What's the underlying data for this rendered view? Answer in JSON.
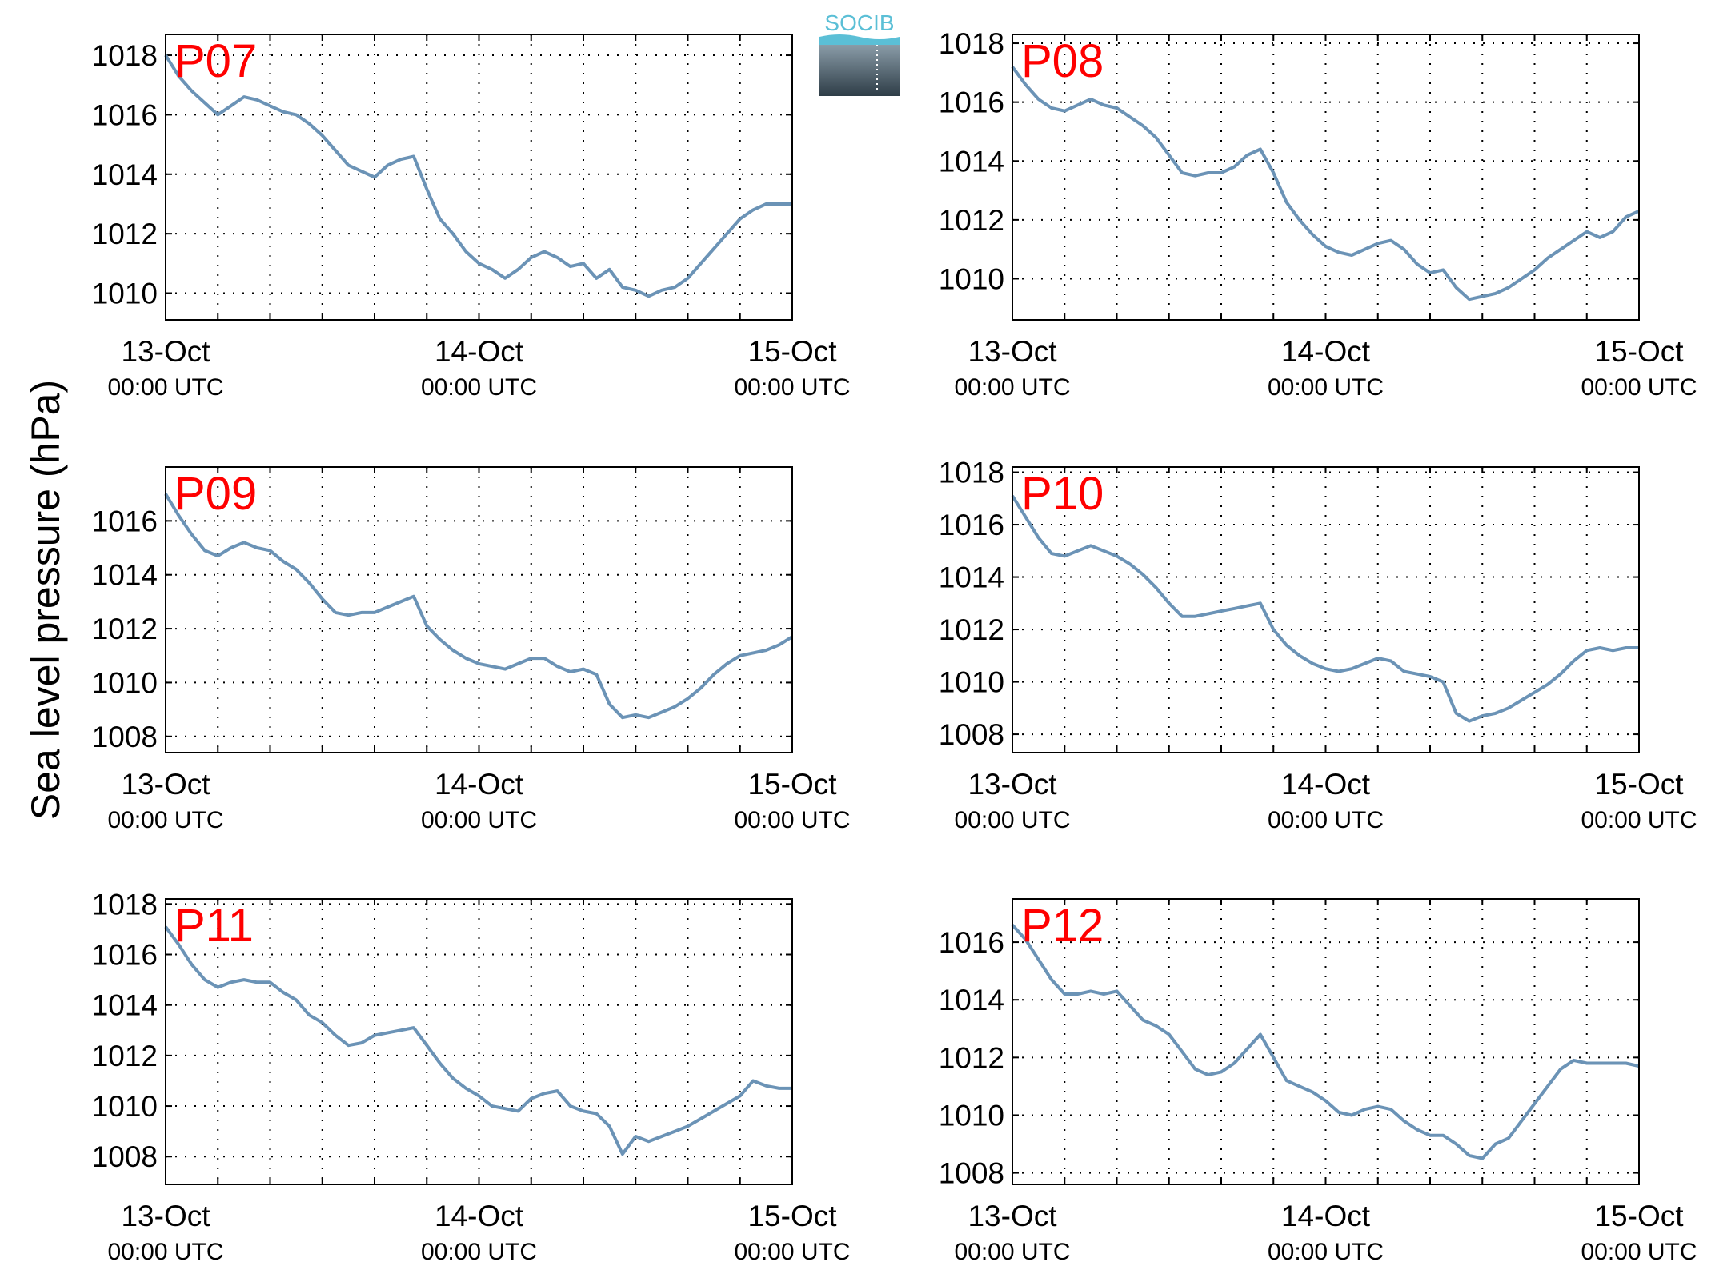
{
  "ylabel": "Sea level pressure (hPa)",
  "logo_text": "SOCIB",
  "colors": {
    "line": "#6b93b6",
    "label": "#ff0000",
    "logo": "#5bbfd6"
  },
  "chart_data": [
    {
      "type": "line",
      "label": "P07",
      "ylim": [
        1009.1,
        1018.7
      ],
      "yticks": [
        1010,
        1012,
        1014,
        1016,
        1018
      ],
      "xlim": [
        "13-Oct 00:00 UTC",
        "15-Oct 00:00 UTC"
      ],
      "xticks": [
        {
          "day": "13-Oct",
          "time": "00:00 UTC"
        },
        {
          "day": "14-Oct",
          "time": "00:00 UTC"
        },
        {
          "day": "15-Oct",
          "time": "00:00 UTC"
        }
      ],
      "grid": true,
      "x": [
        0,
        1,
        2,
        3,
        4,
        5,
        6,
        7,
        8,
        9,
        10,
        11,
        12,
        13,
        14,
        15,
        16,
        17,
        18,
        19,
        20,
        21,
        22,
        23,
        24,
        25,
        26,
        27,
        28,
        29,
        30,
        31,
        32,
        33,
        34,
        35,
        36,
        37,
        38,
        39,
        40,
        41,
        42,
        43,
        44,
        45,
        46,
        47,
        48
      ],
      "y": [
        1018.0,
        1017.3,
        1016.8,
        1016.4,
        1016.0,
        1016.3,
        1016.6,
        1016.5,
        1016.3,
        1016.1,
        1016.0,
        1015.7,
        1015.3,
        1014.8,
        1014.3,
        1014.1,
        1013.9,
        1014.3,
        1014.5,
        1014.6,
        1013.5,
        1012.5,
        1012.0,
        1011.4,
        1011.0,
        1010.8,
        1010.5,
        1010.8,
        1011.2,
        1011.4,
        1011.2,
        1010.9,
        1011.0,
        1010.5,
        1010.8,
        1010.2,
        1010.1,
        1009.9,
        1010.1,
        1010.2,
        1010.5,
        1011.0,
        1011.5,
        1012.0,
        1012.5,
        1012.8,
        1013.0,
        1013.0,
        1013.0
      ]
    },
    {
      "type": "line",
      "label": "P08",
      "ylim": [
        1008.6,
        1018.3
      ],
      "yticks": [
        1010,
        1012,
        1014,
        1016,
        1018
      ],
      "xlim": [
        "13-Oct 00:00 UTC",
        "15-Oct 00:00 UTC"
      ],
      "xticks": [
        {
          "day": "13-Oct",
          "time": "00:00 UTC"
        },
        {
          "day": "14-Oct",
          "time": "00:00 UTC"
        },
        {
          "day": "15-Oct",
          "time": "00:00 UTC"
        }
      ],
      "grid": true,
      "x": [
        0,
        1,
        2,
        3,
        4,
        5,
        6,
        7,
        8,
        9,
        10,
        11,
        12,
        13,
        14,
        15,
        16,
        17,
        18,
        19,
        20,
        21,
        22,
        23,
        24,
        25,
        26,
        27,
        28,
        29,
        30,
        31,
        32,
        33,
        34,
        35,
        36,
        37,
        38,
        39,
        40,
        41,
        42,
        43,
        44,
        45,
        46,
        47,
        48
      ],
      "y": [
        1017.2,
        1016.6,
        1016.1,
        1015.8,
        1015.7,
        1015.9,
        1016.1,
        1015.9,
        1015.8,
        1015.5,
        1015.2,
        1014.8,
        1014.2,
        1013.6,
        1013.5,
        1013.6,
        1013.6,
        1013.8,
        1014.2,
        1014.4,
        1013.6,
        1012.6,
        1012.0,
        1011.5,
        1011.1,
        1010.9,
        1010.8,
        1011.0,
        1011.2,
        1011.3,
        1011.0,
        1010.5,
        1010.2,
        1010.3,
        1009.7,
        1009.3,
        1009.4,
        1009.5,
        1009.7,
        1010.0,
        1010.3,
        1010.7,
        1011.0,
        1011.3,
        1011.6,
        1011.4,
        1011.6,
        1012.1,
        1012.3
      ]
    },
    {
      "type": "line",
      "label": "P09",
      "ylim": [
        1007.4,
        1018.0
      ],
      "yticks": [
        1008,
        1010,
        1012,
        1014,
        1016
      ],
      "xlim": [
        "13-Oct 00:00 UTC",
        "15-Oct 00:00 UTC"
      ],
      "xticks": [
        {
          "day": "13-Oct",
          "time": "00:00 UTC"
        },
        {
          "day": "14-Oct",
          "time": "00:00 UTC"
        },
        {
          "day": "15-Oct",
          "time": "00:00 UTC"
        }
      ],
      "grid": true,
      "x": [
        0,
        1,
        2,
        3,
        4,
        5,
        6,
        7,
        8,
        9,
        10,
        11,
        12,
        13,
        14,
        15,
        16,
        17,
        18,
        19,
        20,
        21,
        22,
        23,
        24,
        25,
        26,
        27,
        28,
        29,
        30,
        31,
        32,
        33,
        34,
        35,
        36,
        37,
        38,
        39,
        40,
        41,
        42,
        43,
        44,
        45,
        46,
        47,
        48
      ],
      "y": [
        1017.0,
        1016.2,
        1015.5,
        1014.9,
        1014.7,
        1015.0,
        1015.2,
        1015.0,
        1014.9,
        1014.5,
        1014.2,
        1013.7,
        1013.1,
        1012.6,
        1012.5,
        1012.6,
        1012.6,
        1012.8,
        1013.0,
        1013.2,
        1012.1,
        1011.6,
        1011.2,
        1010.9,
        1010.7,
        1010.6,
        1010.5,
        1010.7,
        1010.9,
        1010.9,
        1010.6,
        1010.4,
        1010.5,
        1010.3,
        1009.2,
        1008.7,
        1008.8,
        1008.7,
        1008.9,
        1009.1,
        1009.4,
        1009.8,
        1010.3,
        1010.7,
        1011.0,
        1011.1,
        1011.2,
        1011.4,
        1011.7
      ]
    },
    {
      "type": "line",
      "label": "P10",
      "ylim": [
        1007.3,
        1018.2
      ],
      "yticks": [
        1008,
        1010,
        1012,
        1014,
        1016,
        1018
      ],
      "xlim": [
        "13-Oct 00:00 UTC",
        "15-Oct 00:00 UTC"
      ],
      "xticks": [
        {
          "day": "13-Oct",
          "time": "00:00 UTC"
        },
        {
          "day": "14-Oct",
          "time": "00:00 UTC"
        },
        {
          "day": "15-Oct",
          "time": "00:00 UTC"
        }
      ],
      "grid": true,
      "x": [
        0,
        1,
        2,
        3,
        4,
        5,
        6,
        7,
        8,
        9,
        10,
        11,
        12,
        13,
        14,
        15,
        16,
        17,
        18,
        19,
        20,
        21,
        22,
        23,
        24,
        25,
        26,
        27,
        28,
        29,
        30,
        31,
        32,
        33,
        34,
        35,
        36,
        37,
        38,
        39,
        40,
        41,
        42,
        43,
        44,
        45,
        46,
        47,
        48
      ],
      "y": [
        1017.1,
        1016.3,
        1015.5,
        1014.9,
        1014.8,
        1015.0,
        1015.2,
        1015.0,
        1014.8,
        1014.5,
        1014.1,
        1013.6,
        1013.0,
        1012.5,
        1012.5,
        1012.6,
        1012.7,
        1012.8,
        1012.9,
        1013.0,
        1012.0,
        1011.4,
        1011.0,
        1010.7,
        1010.5,
        1010.4,
        1010.5,
        1010.7,
        1010.9,
        1010.8,
        1010.4,
        1010.3,
        1010.2,
        1010.0,
        1008.8,
        1008.5,
        1008.7,
        1008.8,
        1009.0,
        1009.3,
        1009.6,
        1009.9,
        1010.3,
        1010.8,
        1011.2,
        1011.3,
        1011.2,
        1011.3,
        1011.3
      ]
    },
    {
      "type": "line",
      "label": "P11",
      "ylim": [
        1006.9,
        1018.2
      ],
      "yticks": [
        1008,
        1010,
        1012,
        1014,
        1016,
        1018
      ],
      "xlim": [
        "13-Oct 00:00 UTC",
        "15-Oct 00:00 UTC"
      ],
      "xticks": [
        {
          "day": "13-Oct",
          "time": "00:00 UTC"
        },
        {
          "day": "14-Oct",
          "time": "00:00 UTC"
        },
        {
          "day": "15-Oct",
          "time": "00:00 UTC"
        }
      ],
      "grid": true,
      "x": [
        0,
        1,
        2,
        3,
        4,
        5,
        6,
        7,
        8,
        9,
        10,
        11,
        12,
        13,
        14,
        15,
        16,
        17,
        18,
        19,
        20,
        21,
        22,
        23,
        24,
        25,
        26,
        27,
        28,
        29,
        30,
        31,
        32,
        33,
        34,
        35,
        36,
        37,
        38,
        39,
        40,
        41,
        42,
        43,
        44,
        45,
        46,
        47,
        48
      ],
      "y": [
        1017.1,
        1016.4,
        1015.6,
        1015.0,
        1014.7,
        1014.9,
        1015.0,
        1014.9,
        1014.9,
        1014.5,
        1014.2,
        1013.6,
        1013.3,
        1012.8,
        1012.4,
        1012.5,
        1012.8,
        1012.9,
        1013.0,
        1013.1,
        1012.4,
        1011.7,
        1011.1,
        1010.7,
        1010.4,
        1010.0,
        1009.9,
        1009.8,
        1010.3,
        1010.5,
        1010.6,
        1010.0,
        1009.8,
        1009.7,
        1009.2,
        1008.1,
        1008.8,
        1008.6,
        1008.8,
        1009.0,
        1009.2,
        1009.5,
        1009.8,
        1010.1,
        1010.4,
        1011.0,
        1010.8,
        1010.7,
        1010.7
      ]
    },
    {
      "type": "line",
      "label": "P12",
      "ylim": [
        1007.6,
        1017.5
      ],
      "yticks": [
        1008,
        1010,
        1012,
        1014,
        1016
      ],
      "xlim": [
        "13-Oct 00:00 UTC",
        "15-Oct 00:00 UTC"
      ],
      "xticks": [
        {
          "day": "13-Oct",
          "time": "00:00 UTC"
        },
        {
          "day": "14-Oct",
          "time": "00:00 UTC"
        },
        {
          "day": "15-Oct",
          "time": "00:00 UTC"
        }
      ],
      "grid": true,
      "x": [
        0,
        1,
        2,
        3,
        4,
        5,
        6,
        7,
        8,
        9,
        10,
        11,
        12,
        13,
        14,
        15,
        16,
        17,
        18,
        19,
        20,
        21,
        22,
        23,
        24,
        25,
        26,
        27,
        28,
        29,
        30,
        31,
        32,
        33,
        34,
        35,
        36,
        37,
        38,
        39,
        40,
        41,
        42,
        43,
        44,
        45,
        46,
        47,
        48
      ],
      "y": [
        1016.6,
        1016.1,
        1015.4,
        1014.7,
        1014.2,
        1014.2,
        1014.3,
        1014.2,
        1014.3,
        1013.8,
        1013.3,
        1013.1,
        1012.8,
        1012.2,
        1011.6,
        1011.4,
        1011.5,
        1011.8,
        1012.3,
        1012.8,
        1012.0,
        1011.2,
        1011.0,
        1010.8,
        1010.5,
        1010.1,
        1010.0,
        1010.2,
        1010.3,
        1010.2,
        1009.8,
        1009.5,
        1009.3,
        1009.3,
        1009.0,
        1008.6,
        1008.5,
        1009.0,
        1009.2,
        1009.8,
        1010.4,
        1011.0,
        1011.6,
        1011.9,
        1011.8,
        1011.8,
        1011.8,
        1011.8,
        1011.7
      ]
    }
  ]
}
